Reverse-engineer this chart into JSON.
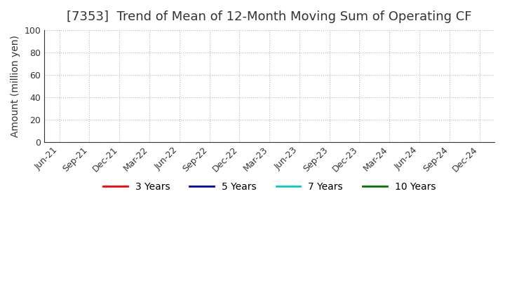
{
  "title": "[7353]  Trend of Mean of 12-Month Moving Sum of Operating CF",
  "ylabel": "Amount (million yen)",
  "ylim": [
    0,
    100
  ],
  "yticks": [
    0,
    20,
    40,
    60,
    80,
    100
  ],
  "x_labels": [
    "Jun-21",
    "Sep-21",
    "Dec-21",
    "Mar-22",
    "Jun-22",
    "Sep-22",
    "Dec-22",
    "Mar-23",
    "Jun-23",
    "Sep-23",
    "Dec-23",
    "Mar-24",
    "Jun-24",
    "Sep-24",
    "Dec-24"
  ],
  "legend_entries": [
    {
      "label": "3 Years",
      "color": "#ff0000"
    },
    {
      "label": "5 Years",
      "color": "#0000bb"
    },
    {
      "label": "7 Years",
      "color": "#00cccc"
    },
    {
      "label": "10 Years",
      "color": "#007700"
    }
  ],
  "grid_color": "#bbbbbb",
  "background_color": "#ffffff",
  "title_fontsize": 13,
  "axis_label_fontsize": 10,
  "tick_fontsize": 9,
  "legend_fontsize": 10
}
